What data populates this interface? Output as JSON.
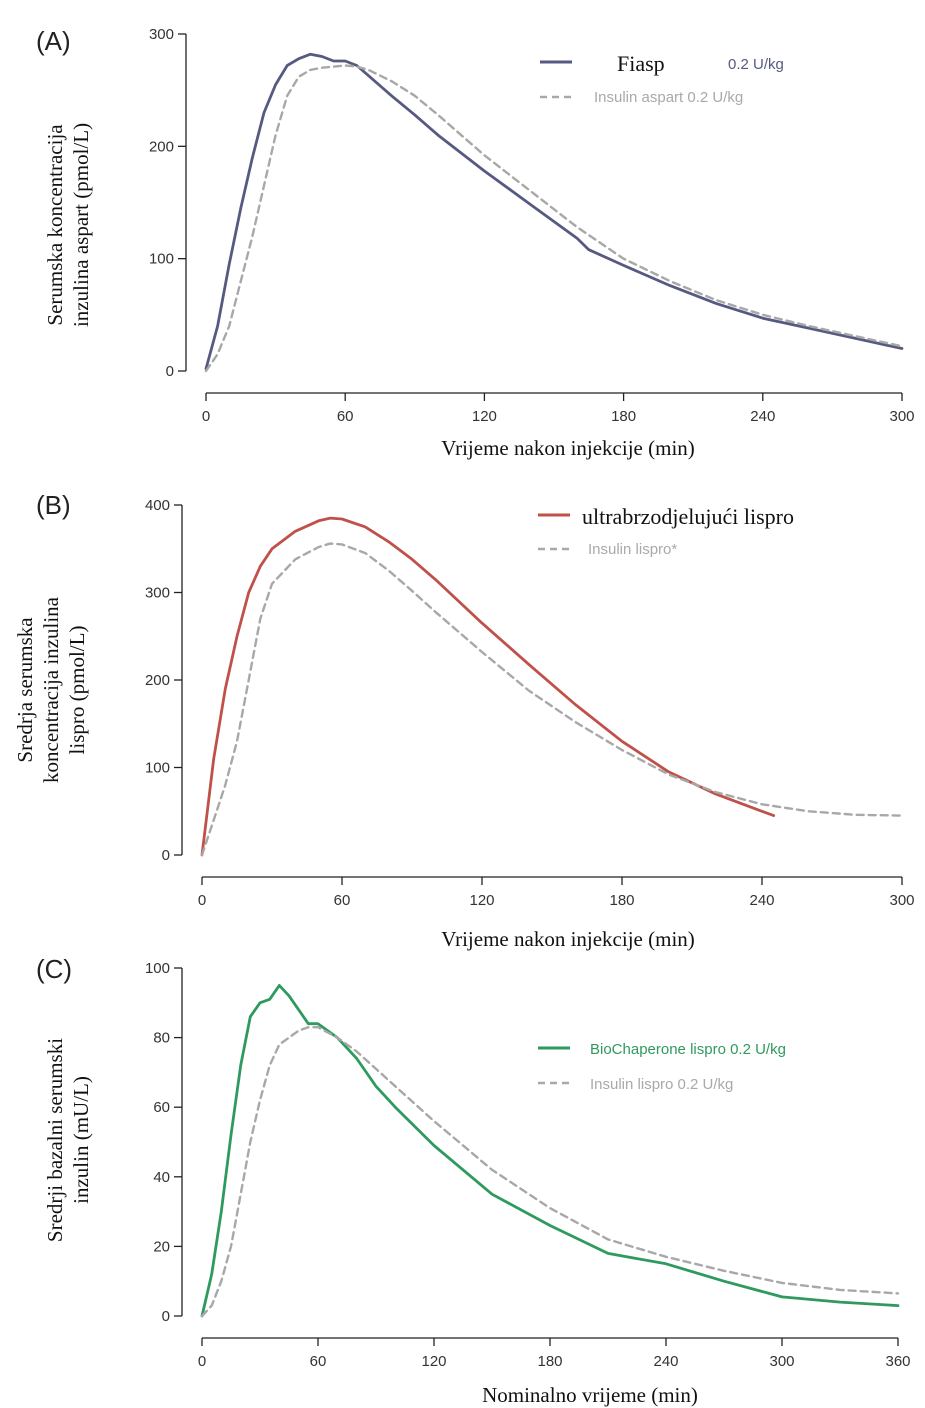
{
  "colors": {
    "fiasp": "#565a80",
    "ultra": "#c0504a",
    "biochap": "#2f9a5e",
    "reference": "#a8a8a8",
    "axis": "#222222",
    "legend_gray": "#a9a9a9"
  },
  "chart_data": [
    {
      "type": "line",
      "panel_label": "(A)",
      "xlabel": "Vrijeme nakon injekcije (min)",
      "ylabel_lines": [
        "Serumska koncentracija",
        "inzulina aspart (pmol/L)"
      ],
      "xlim": [
        0,
        300
      ],
      "ylim": [
        0,
        300
      ],
      "xticks": [
        0,
        60,
        120,
        180,
        240,
        300
      ],
      "yticks": [
        0,
        100,
        200,
        300
      ],
      "legend_position": "top-right",
      "series": [
        {
          "legend_main": "Fiasp",
          "legend_extra": "0.2 U/kg",
          "style": "solid",
          "color_key": "fiasp",
          "x": [
            0,
            5,
            10,
            15,
            20,
            25,
            30,
            35,
            40,
            45,
            50,
            55,
            60,
            65,
            70,
            80,
            90,
            100,
            120,
            140,
            160,
            165,
            180,
            200,
            220,
            240,
            260,
            280,
            300
          ],
          "y": [
            2,
            40,
            95,
            145,
            190,
            230,
            255,
            272,
            278,
            282,
            280,
            276,
            276,
            272,
            263,
            245,
            228,
            210,
            178,
            148,
            118,
            108,
            94,
            76,
            60,
            47,
            38,
            29,
            20
          ]
        },
        {
          "legend_main": "Insulin aspart 0.2 U/kg",
          "style": "dashed",
          "color_key": "reference",
          "x": [
            0,
            5,
            10,
            15,
            20,
            25,
            30,
            35,
            40,
            45,
            50,
            55,
            60,
            65,
            70,
            80,
            90,
            100,
            120,
            140,
            160,
            180,
            200,
            220,
            240,
            260,
            280,
            300
          ],
          "y": [
            0,
            15,
            40,
            80,
            120,
            165,
            210,
            245,
            262,
            268,
            270,
            271,
            272,
            271,
            268,
            258,
            245,
            228,
            192,
            160,
            128,
            100,
            80,
            63,
            50,
            40,
            31,
            22
          ]
        }
      ]
    },
    {
      "type": "line",
      "panel_label": "(B)",
      "xlabel": "Vrijeme nakon injekcije (min)",
      "ylabel_lines": [
        "Sredrja serumska",
        "koncentracija inzulina",
        "lispro (pmol/L)"
      ],
      "xlim": [
        0,
        300
      ],
      "ylim": [
        0,
        400
      ],
      "xticks": [
        0,
        60,
        120,
        180,
        240,
        300
      ],
      "yticks": [
        0,
        100,
        200,
        300,
        400
      ],
      "legend_position": "top-right",
      "series": [
        {
          "legend_main": "ultrabrzodjelujući lispro",
          "style": "solid",
          "color_key": "ultra",
          "x": [
            0,
            5,
            10,
            15,
            20,
            25,
            30,
            40,
            50,
            55,
            60,
            70,
            80,
            90,
            100,
            120,
            140,
            160,
            180,
            200,
            220,
            240,
            245
          ],
          "y": [
            0,
            110,
            190,
            250,
            300,
            330,
            350,
            370,
            382,
            385,
            384,
            375,
            358,
            338,
            315,
            265,
            218,
            172,
            130,
            95,
            70,
            50,
            45
          ]
        },
        {
          "legend_main": "Insulin lispro*",
          "style": "dashed",
          "color_key": "reference",
          "x": [
            0,
            5,
            10,
            15,
            20,
            25,
            30,
            40,
            50,
            55,
            60,
            70,
            80,
            90,
            100,
            120,
            140,
            160,
            180,
            200,
            220,
            240,
            260,
            280,
            300
          ],
          "y": [
            0,
            40,
            80,
            130,
            200,
            270,
            310,
            338,
            352,
            356,
            355,
            345,
            325,
            302,
            278,
            232,
            188,
            152,
            120,
            92,
            72,
            58,
            50,
            46,
            45
          ]
        }
      ]
    },
    {
      "type": "line",
      "panel_label": "(C)",
      "xlabel": "Nominalno vrijeme (min)",
      "ylabel_lines": [
        "Sredrji bazalni serumski",
        "inzulin (mU/L)"
      ],
      "xlim": [
        0,
        360
      ],
      "ylim": [
        0,
        100
      ],
      "xticks": [
        0,
        60,
        120,
        180,
        240,
        300,
        360
      ],
      "yticks": [
        0,
        20,
        40,
        60,
        80,
        100
      ],
      "legend_position": "right",
      "series": [
        {
          "legend_main": "BioChaperone lispro 0.2 U/kg",
          "style": "solid",
          "color_key": "biochap",
          "x": [
            0,
            5,
            10,
            15,
            20,
            25,
            30,
            35,
            40,
            45,
            50,
            55,
            60,
            70,
            80,
            90,
            100,
            120,
            150,
            180,
            210,
            240,
            270,
            300,
            330,
            360
          ],
          "y": [
            0,
            12,
            30,
            52,
            72,
            86,
            90,
            91,
            95,
            92,
            88,
            84,
            84,
            80,
            74,
            66,
            60,
            49,
            35,
            26,
            18,
            15,
            10,
            5.5,
            4,
            3
          ]
        },
        {
          "legend_main": "Insulin lispro 0.2 U/kg",
          "style": "dashed",
          "color_key": "reference",
          "x": [
            0,
            5,
            10,
            15,
            20,
            25,
            30,
            35,
            40,
            45,
            50,
            55,
            60,
            70,
            80,
            90,
            100,
            120,
            150,
            180,
            210,
            240,
            270,
            300,
            330,
            360
          ],
          "y": [
            0,
            3,
            10,
            20,
            35,
            50,
            62,
            72,
            78,
            80,
            82,
            83,
            83,
            80,
            76,
            71,
            66,
            56,
            42,
            31,
            22,
            17,
            13,
            9.5,
            7.5,
            6.5
          ]
        }
      ]
    }
  ]
}
